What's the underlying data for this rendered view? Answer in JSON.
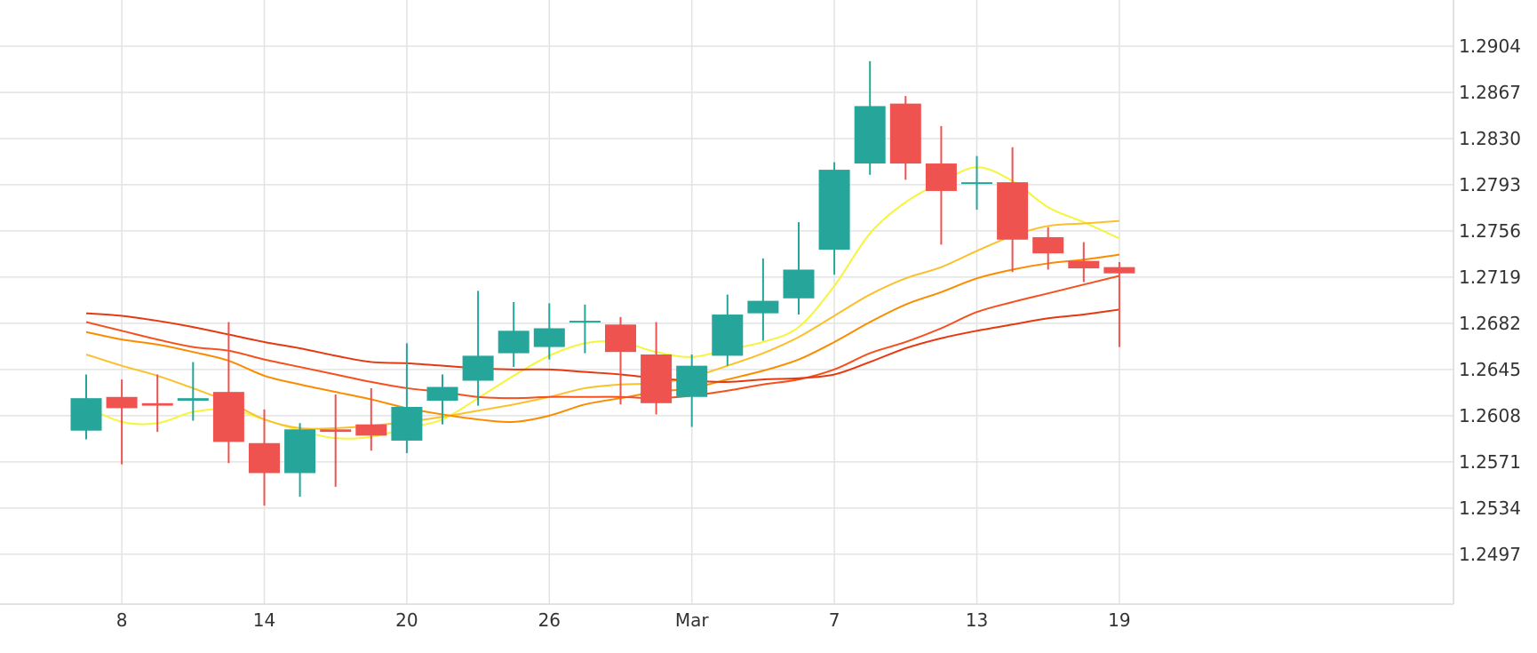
{
  "chart_data": {
    "type": "candlestick",
    "ylim": [
      1.2457,
      1.2941
    ],
    "y_ticks": [
      "1.2904",
      "1.2867",
      "1.2830",
      "1.2793",
      "1.2756",
      "1.2719",
      "1.2682",
      "1.2645",
      "1.2608",
      "1.2571",
      "1.2534",
      "1.2497"
    ],
    "x_ticks": [
      {
        "label": "8",
        "index": 1
      },
      {
        "label": "14",
        "index": 5
      },
      {
        "label": "20",
        "index": 9
      },
      {
        "label": "26",
        "index": 13
      },
      {
        "label": "Mar",
        "index": 17
      },
      {
        "label": "7",
        "index": 21
      },
      {
        "label": "13",
        "index": 25
      },
      {
        "label": "19",
        "index": 29
      }
    ],
    "grid": true,
    "candles": [
      {
        "open": 1.2596,
        "high": 1.2641,
        "low": 1.2589,
        "close": 1.2622
      },
      {
        "open": 1.2623,
        "high": 1.2637,
        "low": 1.2569,
        "close": 1.2614
      },
      {
        "open": 1.2618,
        "high": 1.2641,
        "low": 1.2595,
        "close": 1.2616
      },
      {
        "open": 1.262,
        "high": 1.2651,
        "low": 1.2604,
        "close": 1.2622
      },
      {
        "open": 1.2627,
        "high": 1.2683,
        "low": 1.257,
        "close": 1.2587
      },
      {
        "open": 1.2586,
        "high": 1.2613,
        "low": 1.2536,
        "close": 1.2562
      },
      {
        "open": 1.2562,
        "high": 1.2602,
        "low": 1.2543,
        "close": 1.2597
      },
      {
        "open": 1.2597,
        "high": 1.2625,
        "low": 1.2551,
        "close": 1.2595
      },
      {
        "open": 1.2601,
        "high": 1.263,
        "low": 1.258,
        "close": 1.2592
      },
      {
        "open": 1.2588,
        "high": 1.2666,
        "low": 1.2578,
        "close": 1.2615
      },
      {
        "open": 1.262,
        "high": 1.2641,
        "low": 1.2601,
        "close": 1.2631
      },
      {
        "open": 1.2636,
        "high": 1.2708,
        "low": 1.2616,
        "close": 1.2656
      },
      {
        "open": 1.2658,
        "high": 1.2699,
        "low": 1.2647,
        "close": 1.2676
      },
      {
        "open": 1.2663,
        "high": 1.2698,
        "low": 1.2653,
        "close": 1.2678
      },
      {
        "open": 1.2684,
        "high": 1.2697,
        "low": 1.2658,
        "close": 1.2684
      },
      {
        "open": 1.2681,
        "high": 1.2687,
        "low": 1.2617,
        "close": 1.2659
      },
      {
        "open": 1.2657,
        "high": 1.2683,
        "low": 1.2609,
        "close": 1.2618
      },
      {
        "open": 1.2623,
        "high": 1.2657,
        "low": 1.2599,
        "close": 1.2648
      },
      {
        "open": 1.2656,
        "high": 1.2705,
        "low": 1.2648,
        "close": 1.2689
      },
      {
        "open": 1.269,
        "high": 1.2734,
        "low": 1.2668,
        "close": 1.27
      },
      {
        "open": 1.2702,
        "high": 1.2763,
        "low": 1.2689,
        "close": 1.2725
      },
      {
        "open": 1.2741,
        "high": 1.2811,
        "low": 1.2721,
        "close": 1.2805
      },
      {
        "open": 1.281,
        "high": 1.2892,
        "low": 1.2801,
        "close": 1.2856
      },
      {
        "open": 1.2858,
        "high": 1.2864,
        "low": 1.2797,
        "close": 1.281
      },
      {
        "open": 1.281,
        "high": 1.284,
        "low": 1.2745,
        "close": 1.2788
      },
      {
        "open": 1.2795,
        "high": 1.2816,
        "low": 1.2773,
        "close": 1.2795
      },
      {
        "open": 1.2795,
        "high": 1.2823,
        "low": 1.2723,
        "close": 1.2749
      },
      {
        "open": 1.2751,
        "high": 1.2759,
        "low": 1.2725,
        "close": 1.2738
      },
      {
        "open": 1.2732,
        "high": 1.2747,
        "low": 1.2715,
        "close": 1.2726
      },
      {
        "open": 1.2727,
        "high": 1.2731,
        "low": 1.2663,
        "close": 1.2722
      }
    ],
    "series": [
      {
        "color": "#f5f53a",
        "values": [
          1.2615,
          1.2603,
          1.2602,
          1.2611,
          1.2613,
          1.2605,
          1.2596,
          1.259,
          1.2591,
          1.2598,
          1.2605,
          1.2622,
          1.264,
          1.2656,
          1.2666,
          1.2667,
          1.2659,
          1.2655,
          1.2661,
          1.2667,
          1.2679,
          1.2712,
          1.2754,
          1.2779,
          1.2795,
          1.2807,
          1.2796,
          1.2775,
          1.2763,
          1.275
        ]
      },
      {
        "color": "#fbc02d",
        "values": [
          1.2657,
          1.2648,
          1.264,
          1.263,
          1.2619,
          1.2605,
          1.2598,
          1.2598,
          1.26,
          1.2603,
          1.2607,
          1.2612,
          1.2617,
          1.2623,
          1.263,
          1.2633,
          1.2634,
          1.2639,
          1.2648,
          1.2658,
          1.2671,
          1.2688,
          1.2705,
          1.2718,
          1.2727,
          1.274,
          1.2752,
          1.276,
          1.2762,
          1.2764
        ]
      },
      {
        "color": "#fb8c00",
        "values": [
          1.2675,
          1.2669,
          1.2665,
          1.2659,
          1.2652,
          1.264,
          1.2633,
          1.2627,
          1.2621,
          1.2614,
          1.2609,
          1.2605,
          1.2603,
          1.2608,
          1.2617,
          1.2622,
          1.2627,
          1.263,
          1.2637,
          1.2644,
          1.2653,
          1.2667,
          1.2683,
          1.2697,
          1.2707,
          1.2718,
          1.2725,
          1.273,
          1.2733,
          1.2737
        ]
      },
      {
        "color": "#f4511e",
        "values": [
          1.2683,
          1.2676,
          1.2669,
          1.2663,
          1.266,
          1.2653,
          1.2647,
          1.2641,
          1.2635,
          1.263,
          1.2627,
          1.2623,
          1.2622,
          1.2623,
          1.2623,
          1.2623,
          1.2622,
          1.2624,
          1.2628,
          1.2633,
          1.2637,
          1.2645,
          1.2658,
          1.2667,
          1.2678,
          1.2691,
          1.2699,
          1.2706,
          1.2713,
          1.272
        ]
      },
      {
        "color": "#e53910",
        "values": [
          1.269,
          1.2688,
          1.2684,
          1.2679,
          1.2673,
          1.2667,
          1.2662,
          1.2656,
          1.2651,
          1.265,
          1.2648,
          1.2646,
          1.2645,
          1.2645,
          1.2643,
          1.2641,
          1.2638,
          1.2636,
          1.2635,
          1.2637,
          1.2638,
          1.2641,
          1.2651,
          1.2662,
          1.267,
          1.2676,
          1.2681,
          1.2686,
          1.2689,
          1.2693
        ]
      }
    ],
    "colors": {
      "up": "#26a69a",
      "down": "#ef5350",
      "grid": "#e3e3e3",
      "axis": "#d9d9d9",
      "text": "#333333"
    }
  }
}
